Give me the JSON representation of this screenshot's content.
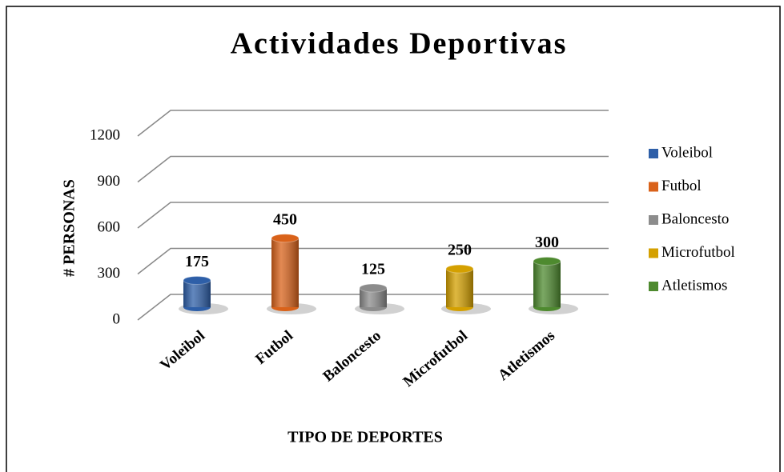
{
  "chart_data": {
    "type": "bar",
    "title": "Actividades Deportivas",
    "x_label": "TIPO DE DEPORTES",
    "y_label": "# PERSONAS",
    "categories": [
      "Voleibol",
      "Futbol",
      "Baloncesto",
      "Microfutbol",
      "Atletismos"
    ],
    "values": [
      175,
      450,
      125,
      250,
      300
    ],
    "colors": [
      "#2e5fa8",
      "#d9621a",
      "#8c8c8c",
      "#d4a000",
      "#4e8a2f"
    ],
    "ylim": [
      0,
      1200
    ],
    "yticks": [
      0,
      300,
      600,
      900,
      1200
    ],
    "grid": true,
    "legend": "right"
  }
}
